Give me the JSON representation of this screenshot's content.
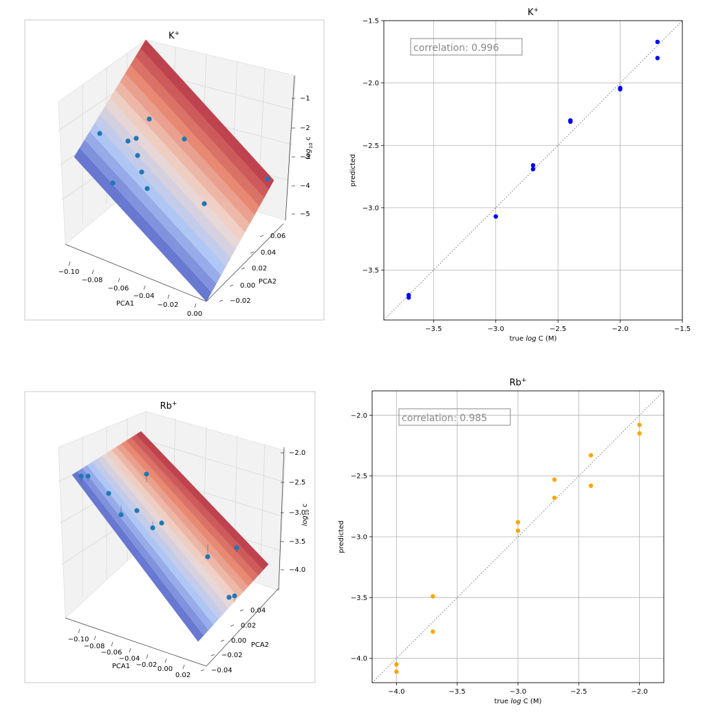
{
  "chart_data": [
    {
      "type": "surface3d",
      "title_base": "K",
      "title_sup": "+",
      "xlabel": "PCA1",
      "ylabel": "PCA2",
      "zlabel": "log10 c",
      "xticks": [
        "−0.10",
        "−0.08",
        "−0.06",
        "−0.04",
        "−0.02",
        "0.00"
      ],
      "yticks": [
        "−0.02",
        "0.00",
        "0.02",
        "0.04",
        "0.06"
      ],
      "zticks": [
        "−1",
        "−2",
        "−3",
        "−4",
        "−5"
      ],
      "points": [
        {
          "x": -0.105,
          "y": 0.035,
          "z": -2.2
        },
        {
          "x": -0.08,
          "y": 0.045,
          "z": -2.45
        },
        {
          "x": -0.07,
          "y": 0.048,
          "z": -2.35
        },
        {
          "x": -0.055,
          "y": 0.06,
          "z": -1.9
        },
        {
          "x": -0.072,
          "y": 0.025,
          "z": -3.0
        },
        {
          "x": -0.07,
          "y": 0.015,
          "z": -3.5
        },
        {
          "x": -0.095,
          "y": -0.005,
          "z": -3.7
        },
        {
          "x": -0.06,
          "y": -0.005,
          "z": -3.9
        },
        {
          "x": -0.03,
          "y": 0.055,
          "z": -2.4
        },
        {
          "x": -0.02,
          "y": 0.0,
          "z": -4.3
        },
        {
          "x": 0.0,
          "y": 0.05,
          "z": -3.8
        }
      ]
    },
    {
      "type": "scatter",
      "title_base": "K",
      "title_sup": "+",
      "xlabel": "true log C (M)",
      "ylabel": "predicted",
      "xlim": [
        -3.9,
        -1.5
      ],
      "ylim": [
        -3.9,
        -1.5
      ],
      "xticks": [
        -3.5,
        -3.0,
        -2.5,
        -2.0,
        -1.5
      ],
      "yticks": [
        -3.5,
        -3.0,
        -2.5,
        -2.0,
        -1.5
      ],
      "annotation": "correlation: 0.996",
      "color": "#0000ff",
      "grid": true,
      "diagonal": true,
      "points": [
        {
          "x": -3.7,
          "y": -3.7
        },
        {
          "x": -3.7,
          "y": -3.72
        },
        {
          "x": -3.0,
          "y": -3.07
        },
        {
          "x": -2.7,
          "y": -2.66
        },
        {
          "x": -2.7,
          "y": -2.69
        },
        {
          "x": -2.4,
          "y": -2.3
        },
        {
          "x": -2.4,
          "y": -2.31
        },
        {
          "x": -2.0,
          "y": -2.04
        },
        {
          "x": -2.0,
          "y": -2.05
        },
        {
          "x": -1.7,
          "y": -1.67
        },
        {
          "x": -1.7,
          "y": -1.8
        }
      ]
    },
    {
      "type": "surface3d",
      "title_base": "Rb",
      "title_sup": "+",
      "xlabel": "PCA1",
      "ylabel": "PCA2",
      "zlabel": "log10 c",
      "xticks": [
        "−0.10",
        "−0.08",
        "−0.06",
        "−0.04",
        "−0.02",
        "0.00",
        "0.02"
      ],
      "yticks": [
        "−0.04",
        "−0.02",
        "0.00",
        "0.02",
        "0.04"
      ],
      "zticks": [
        "−2.0",
        "−2.5",
        "−3.0",
        "−3.5",
        "−4.0"
      ],
      "points": [
        {
          "x": -0.11,
          "y": 0.04,
          "z": -2.1
        },
        {
          "x": -0.105,
          "y": 0.04,
          "z": -2.1
        },
        {
          "x": -0.08,
          "y": 0.02,
          "z": -2.5
        },
        {
          "x": -0.075,
          "y": 0.0,
          "z": -2.9
        },
        {
          "x": -0.06,
          "y": 0.01,
          "z": -2.9
        },
        {
          "x": -0.055,
          "y": 0.04,
          "z": -2.2
        },
        {
          "x": -0.05,
          "y": -0.005,
          "z": -3.2
        },
        {
          "x": -0.045,
          "y": 0.005,
          "z": -3.1
        },
        {
          "x": -0.01,
          "y": -0.015,
          "z": -3.7
        },
        {
          "x": 0.005,
          "y": 0.01,
          "z": -3.6
        },
        {
          "x": 0.0,
          "y": -0.035,
          "z": -4.2
        },
        {
          "x": 0.005,
          "y": -0.035,
          "z": -4.2
        }
      ]
    },
    {
      "type": "scatter",
      "title_base": "Rb",
      "title_sup": "+",
      "xlabel": "true log C (M)",
      "ylabel": "predicted",
      "xlim": [
        -4.2,
        -1.8
      ],
      "ylim": [
        -4.2,
        -1.8
      ],
      "xticks": [
        -4.0,
        -3.5,
        -3.0,
        -2.5,
        -2.0
      ],
      "yticks": [
        -4.0,
        -3.5,
        -3.0,
        -2.5,
        -2.0
      ],
      "annotation": "correlation: 0.985",
      "color": "#ffa500",
      "grid": true,
      "diagonal": true,
      "points": [
        {
          "x": -4.0,
          "y": -4.05
        },
        {
          "x": -4.0,
          "y": -4.11
        },
        {
          "x": -3.7,
          "y": -3.49
        },
        {
          "x": -3.7,
          "y": -3.78
        },
        {
          "x": -3.0,
          "y": -2.88
        },
        {
          "x": -3.0,
          "y": -2.95
        },
        {
          "x": -2.7,
          "y": -2.53
        },
        {
          "x": -2.7,
          "y": -2.68
        },
        {
          "x": -2.4,
          "y": -2.33
        },
        {
          "x": -2.4,
          "y": -2.58
        },
        {
          "x": -2.0,
          "y": -2.08
        },
        {
          "x": -2.0,
          "y": -2.15
        }
      ]
    }
  ]
}
